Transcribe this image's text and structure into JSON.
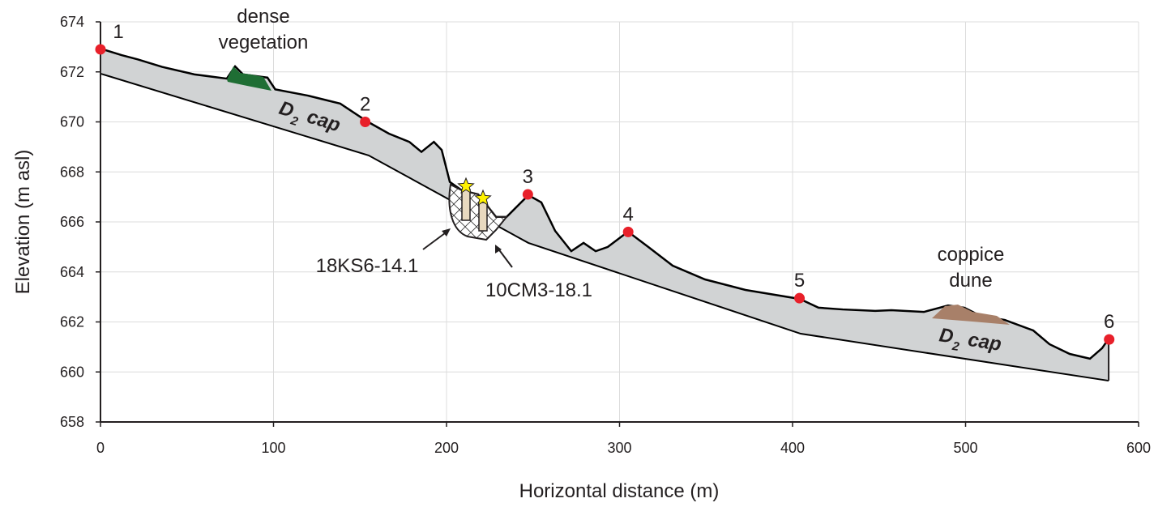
{
  "chart_data": {
    "type": "line",
    "x_label": "Horizontal distance (m)",
    "y_label": "Elevation (m asl)",
    "xlim": [
      0,
      600
    ],
    "xticks": [
      0,
      100,
      200,
      300,
      400,
      500,
      600
    ],
    "ylim": [
      658,
      674
    ],
    "yticks": [
      658,
      660,
      662,
      664,
      666,
      668,
      670,
      672,
      674
    ],
    "grid": true,
    "series": [
      {
        "color": "#000000",
        "fill": "#d1d3d4",
        "x": [
          0,
          12.2,
          21.5,
          35.6,
          54.3,
          73,
          77.8,
          82.4,
          96.5,
          101,
          119.9,
          138.6,
          154.1,
          166.7,
          178.5,
          185.5,
          192.7,
          197.2,
          201.9,
          208.9,
          218.3,
          228.6,
          234.7,
          247.3,
          254.8,
          262.8,
          272.1,
          279.2,
          286.2,
          293.2,
          304.9,
          316.6,
          330.7,
          349.4,
          372.8,
          404.2,
          415,
          429,
          447.8,
          457.1,
          475.9,
          489.9,
          499.3,
          508.7,
          522.7,
          539.1,
          548.5,
          560.2,
          571.9,
          578.9,
          582.7
        ],
        "values": [
          672.93,
          672.67,
          672.5,
          672.2,
          671.9,
          671.73,
          672.22,
          671.9,
          671.77,
          671.3,
          671.05,
          670.73,
          670.02,
          669.53,
          669.2,
          668.8,
          669.2,
          668.88,
          667.6,
          667.26,
          667.1,
          666.2,
          666.2,
          667.07,
          666.78,
          665.64,
          664.83,
          665.16,
          664.83,
          665.0,
          665.61,
          665.0,
          664.25,
          663.7,
          663.28,
          662.92,
          662.57,
          662.5,
          662.44,
          662.47,
          662.4,
          662.66,
          662.57,
          662.24,
          662.08,
          661.66,
          661.11,
          660.72,
          660.53,
          660.95,
          661.33
        ]
      },
      {
        "color": "#000000",
        "x": [
          0,
          155,
          247.3,
          404.7,
          582.7
        ],
        "values": [
          671.93,
          668.66,
          665.16,
          661.53,
          659.65
        ]
      }
    ],
    "points": {
      "color": "#e8202a",
      "labels": [
        "1",
        "2",
        "3",
        "4",
        "5",
        "6"
      ],
      "x": [
        0,
        153,
        247,
        305,
        404,
        583
      ],
      "values": [
        672.9,
        670.0,
        667.1,
        665.6,
        662.95,
        661.3
      ]
    },
    "annotations": [
      {
        "text": [
          "dense",
          "vegetation"
        ]
      },
      {
        "text": [
          "coppice",
          "dune"
        ]
      },
      {
        "text": [
          "18KS6-14.1"
        ]
      },
      {
        "text": [
          "10CM3-18.1"
        ]
      },
      {
        "text": [
          "D",
          "2",
          "cap"
        ]
      },
      {
        "text": [
          "D",
          "2",
          "cap"
        ]
      }
    ]
  }
}
